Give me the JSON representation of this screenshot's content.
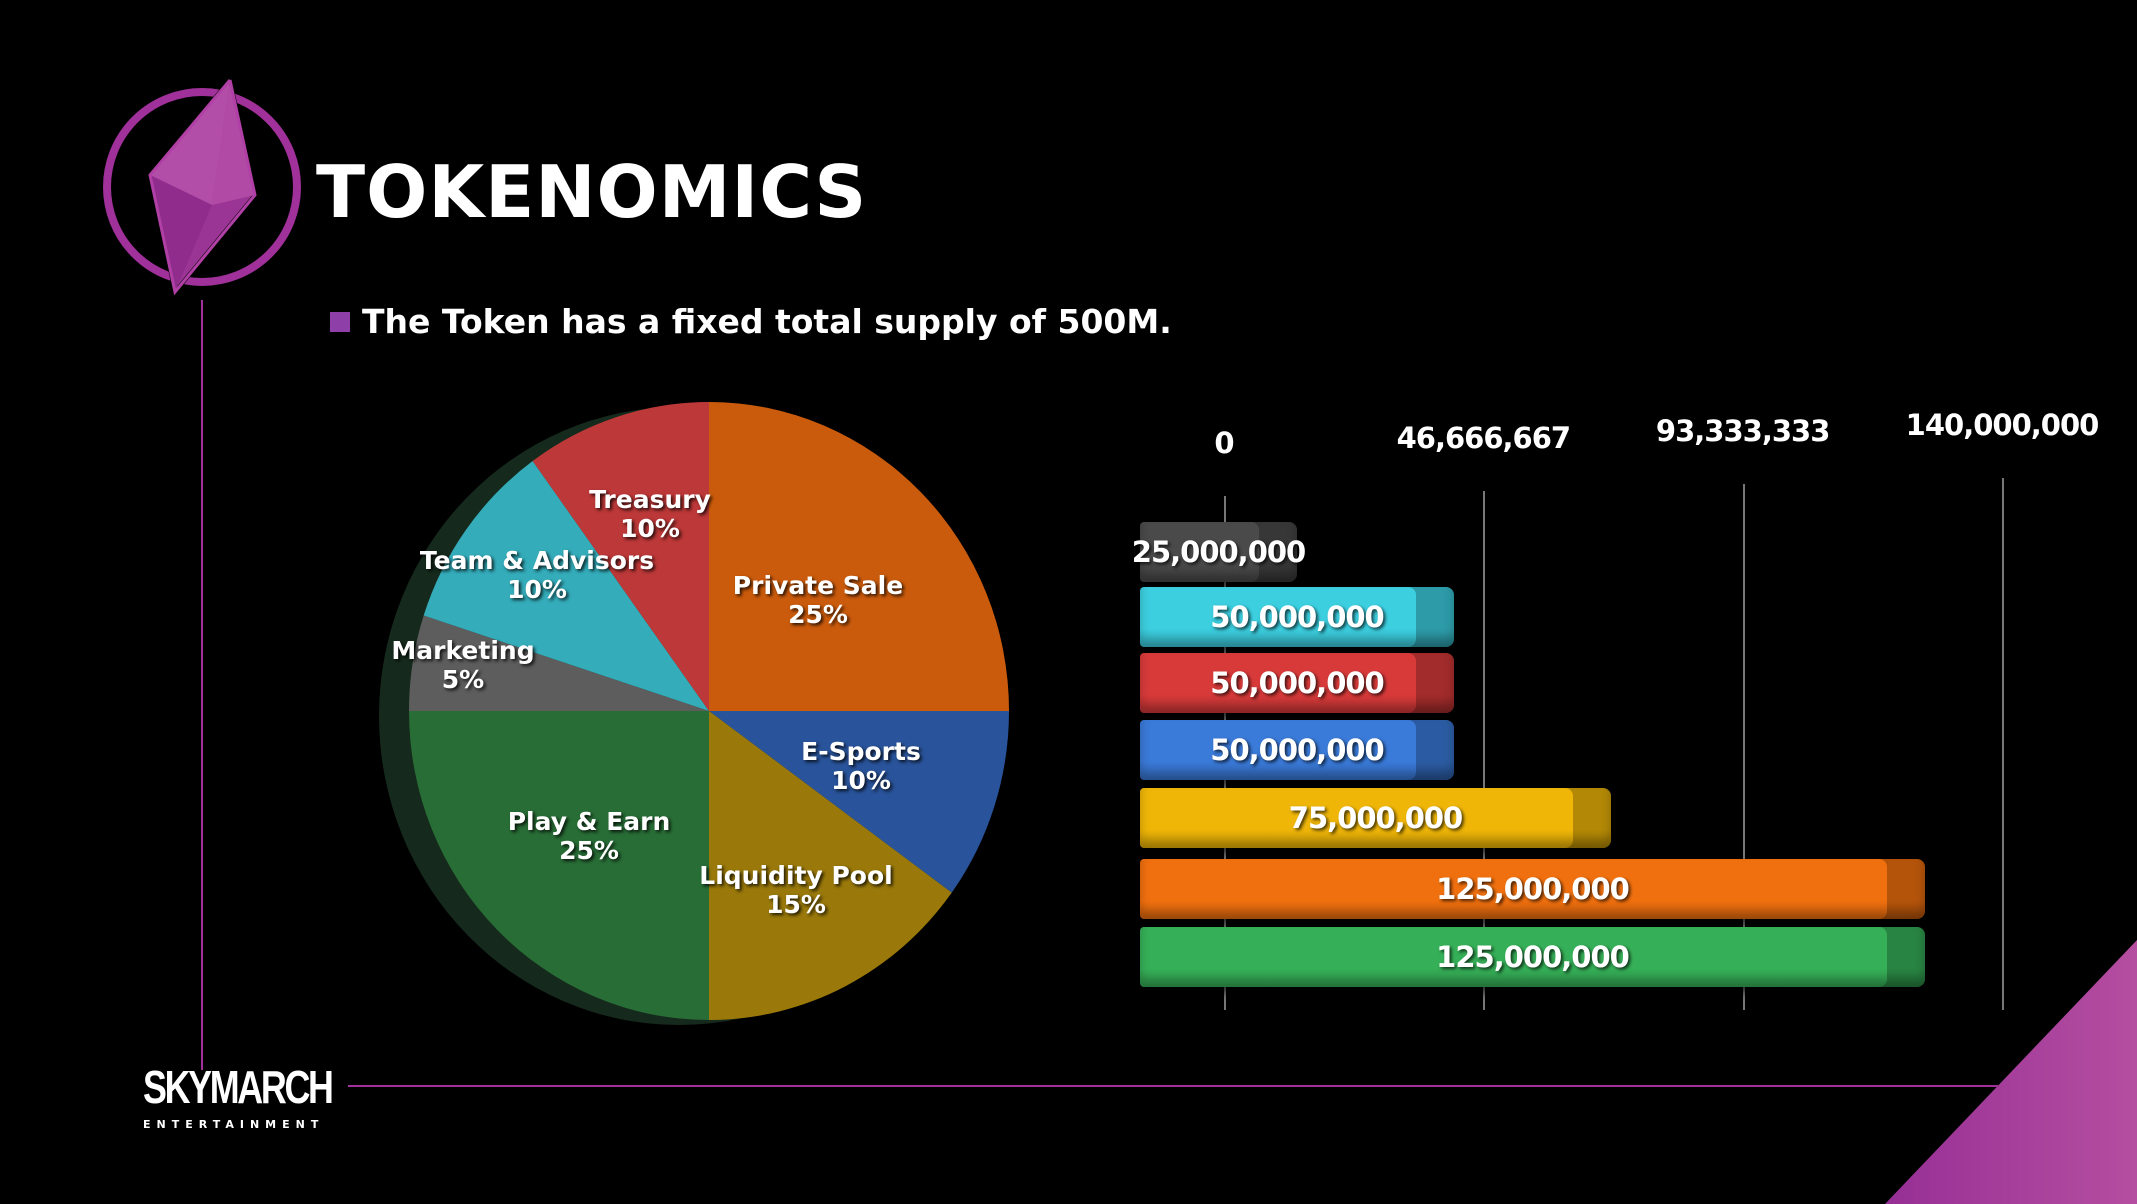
{
  "header": {
    "title": "TOKENOMICS",
    "bullet": "The Token has a fixed total supply of 500M."
  },
  "brand": {
    "name": "SKYMARCH",
    "subtitle": "ENTERTAINMENT"
  },
  "colors": {
    "accent": "#a0309a",
    "purple": "#8e3fa8"
  },
  "chart_data": [
    {
      "type": "pie",
      "title": "",
      "slices": [
        {
          "label": "Private Sale",
          "value": 25,
          "pct": "25%",
          "color": "#e8680e"
        },
        {
          "label": "E-Sports",
          "value": 10,
          "pct": "10%",
          "color": "#2f5fb0"
        },
        {
          "label": "Liquidity Pool",
          "value": 15,
          "pct": "15%",
          "color": "#b08a0c"
        },
        {
          "label": "Play & Earn",
          "value": 25,
          "pct": "25%",
          "color": "#2e7d3e"
        },
        {
          "label": "Marketing",
          "value": 5,
          "pct": "5%",
          "color": "#6a6a6a"
        },
        {
          "label": "Team & Advisors",
          "value": 10,
          "pct": "10%",
          "color": "#3cc4d4"
        },
        {
          "label": "Treasury",
          "value": 10,
          "pct": "10%",
          "color": "#d84040"
        }
      ]
    },
    {
      "type": "bar",
      "orientation": "horizontal",
      "xlim": [
        0,
        140000000
      ],
      "ticks": [
        "0",
        "46,666,667",
        "93,333,333",
        "140,000,000"
      ],
      "tick_values": [
        0,
        46666667,
        93333333,
        140000000
      ],
      "bars": [
        {
          "value": 25000000,
          "label": "25,000,000",
          "color": "#4a4a4a"
        },
        {
          "value": 50000000,
          "label": "50,000,000",
          "color": "#3ccfe0"
        },
        {
          "value": 50000000,
          "label": "50,000,000",
          "color": "#d83a3a"
        },
        {
          "value": 50000000,
          "label": "50,000,000",
          "color": "#3a7ad8"
        },
        {
          "value": 75000000,
          "label": "75,000,000",
          "color": "#efb608"
        },
        {
          "value": 125000000,
          "label": "125,000,000",
          "color": "#f0700f"
        },
        {
          "value": 125000000,
          "label": "125,000,000",
          "color": "#36b058"
        }
      ]
    }
  ]
}
